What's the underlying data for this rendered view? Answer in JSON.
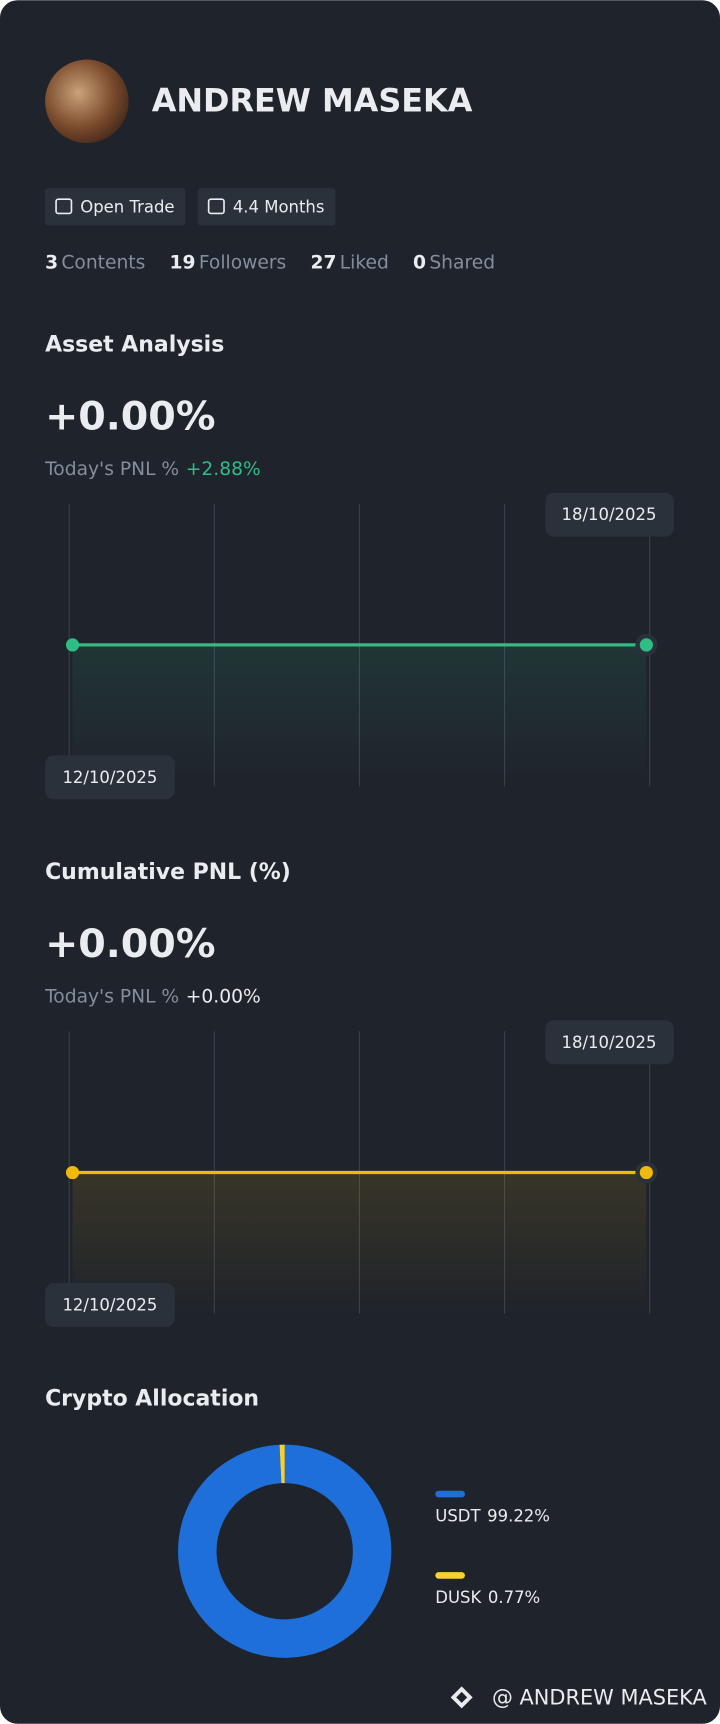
{
  "profile": {
    "name": "ANDREW MASEKA",
    "badges": [
      "Open Trade",
      "4.4 Months"
    ]
  },
  "stats": [
    {
      "value": 3,
      "label": "Contents"
    },
    {
      "value": 19,
      "label": "Followers"
    },
    {
      "value": 27,
      "label": "Liked"
    },
    {
      "value": 0,
      "label": "Shared"
    }
  ],
  "sections": [
    {
      "title": "Asset Analysis",
      "value": "+0.00%",
      "today_label": "Today's PNL %",
      "today_value": "+2.88%",
      "today_color": "#2ebd85",
      "chart": {
        "type": "line",
        "x": [
          "12/10/2025",
          "18/10/2025"
        ],
        "values": [
          0,
          0
        ],
        "color": "#2ebd85"
      }
    },
    {
      "title": "Cumulative PNL (%)",
      "value": "+0.00%",
      "today_label": "Today's PNL %",
      "today_value": "+0.00%",
      "today_color": "#eaecef",
      "chart": {
        "type": "line",
        "x": [
          "12/10/2025",
          "18/10/2025"
        ],
        "values": [
          0,
          0
        ],
        "color": "#f0b90b"
      }
    }
  ],
  "allocation": {
    "title": "Crypto Allocation",
    "type": "pie",
    "categories": [
      "USDT",
      "DUSK"
    ],
    "values": [
      99.22,
      0.77
    ],
    "value_labels": [
      "99.22%",
      "0.77%"
    ],
    "colors": [
      "#1e6fd9",
      "#f5d232"
    ]
  },
  "footer": "@ ANDREW MASEKA"
}
